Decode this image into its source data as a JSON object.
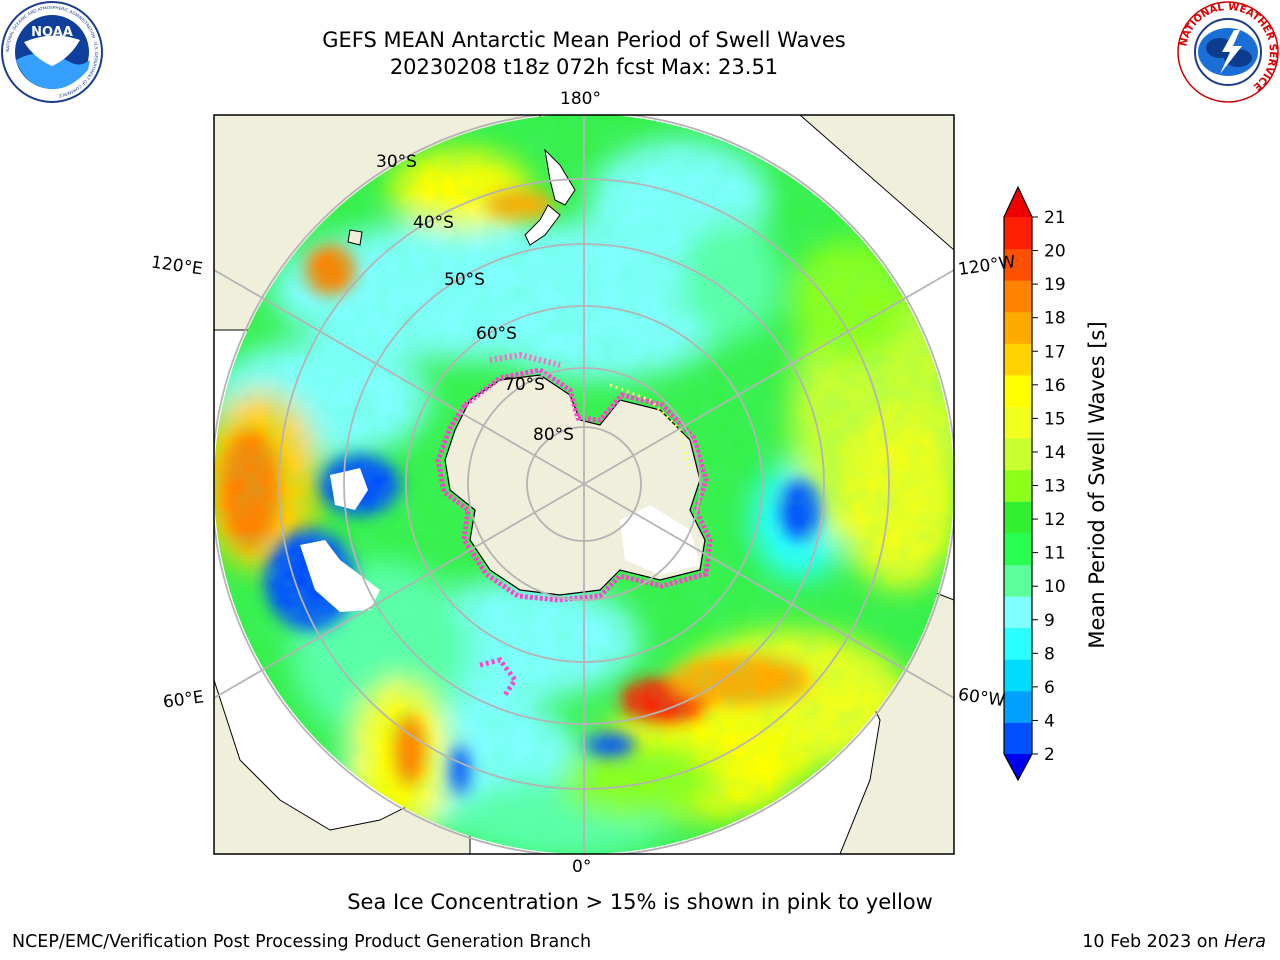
{
  "title_line1": "GEFS MEAN Antarctic Mean Period of Swell Waves",
  "title_line2": "20230208 t18z 072h fcst   Max: 23.51",
  "map": {
    "projection": "South Polar Stereographic",
    "longitude_labels": [
      "180°",
      "120°E",
      "120°W",
      "60°E",
      "60°W",
      "0°"
    ],
    "latitude_labels": [
      "30°S",
      "40°S",
      "50°S",
      "60°S",
      "70°S",
      "80°S"
    ],
    "land_color": "#efefdc",
    "missing_color": "#ffffff",
    "sea_ice_colors": [
      "#ff66cc",
      "#ff3399",
      "#ffff66"
    ]
  },
  "colorbar": {
    "label": "Mean Period of Swell Waves [s]",
    "ticks": [
      2,
      4,
      6,
      8,
      9,
      10,
      11,
      12,
      13,
      14,
      15,
      16,
      17,
      18,
      19,
      20,
      21
    ],
    "colors": [
      "#0050ff",
      "#00a0ff",
      "#00dcff",
      "#2affff",
      "#7fffff",
      "#5aff9a",
      "#28ff50",
      "#30f030",
      "#8cff1a",
      "#c8ff30",
      "#f0ff1e",
      "#ffff00",
      "#ffd200",
      "#ffaa00",
      "#ff8200",
      "#ff5000",
      "#ff1e00"
    ],
    "under_color": "#0000ee",
    "over_color": "#ee0000",
    "extend": "both"
  },
  "footer_note": "Sea Ice Concentration > 15% is shown in pink to yellow",
  "credit": "NCEP/EMC/Verification Post Processing Product Generation Branch",
  "date_text": "10 Feb 2023 on ",
  "date_host": "Hera",
  "logos": {
    "left_text": "NOAA",
    "left_ring_text": "NATIONAL OCEANIC AND ATMOSPHERIC ADMINISTRATION · U.S. DEPARTMENT OF COMMERCE",
    "right_ring_text": "NATIONAL WEATHER SERVICE"
  }
}
